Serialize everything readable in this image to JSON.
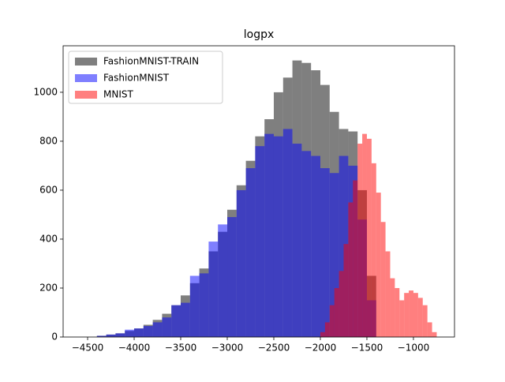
{
  "chart_data": {
    "type": "histogram",
    "title": "logpx",
    "alpha": 0.5,
    "legend": "upper left",
    "xlim": [
      -4763,
      -559
    ],
    "ylim": [
      0,
      1190
    ],
    "xticks": [
      {
        "value": -4500,
        "label": "−4500"
      },
      {
        "value": -4000,
        "label": "−4000"
      },
      {
        "value": -3500,
        "label": "−3500"
      },
      {
        "value": -3000,
        "label": "−3000"
      },
      {
        "value": -2500,
        "label": "−2500"
      },
      {
        "value": -2000,
        "label": "−2000"
      },
      {
        "value": -1500,
        "label": "−1500"
      },
      {
        "value": -1000,
        "label": "−1000"
      }
    ],
    "yticks": [
      0,
      200,
      400,
      600,
      800,
      1000
    ],
    "series": [
      {
        "name": "FashionMNIST-TRAIN",
        "color": "#000000",
        "bins": [
          -4400,
          -4300,
          -4200,
          -4100,
          -4000,
          -3900,
          -3800,
          -3700,
          -3600,
          -3500,
          -3400,
          -3300,
          -3200,
          -3100,
          -3000,
          -2900,
          -2800,
          -2700,
          -2600,
          -2500,
          -2400,
          -2300,
          -2200,
          -2100,
          -2000,
          -1900,
          -1800,
          -1700,
          -1600,
          -1500,
          -1400
        ],
        "values": [
          5,
          10,
          15,
          25,
          35,
          50,
          70,
          95,
          130,
          170,
          220,
          280,
          350,
          430,
          520,
          620,
          720,
          820,
          890,
          1000,
          1060,
          1130,
          1120,
          1090,
          1030,
          920,
          850,
          840,
          600,
          250
        ]
      },
      {
        "name": "FashionMNIST",
        "color": "#0000ff",
        "bins": [
          -4400,
          -4300,
          -4200,
          -4100,
          -4000,
          -3900,
          -3800,
          -3700,
          -3600,
          -3500,
          -3400,
          -3300,
          -3200,
          -3100,
          -3000,
          -2900,
          -2800,
          -2700,
          -2600,
          -2500,
          -2400,
          -2300,
          -2200,
          -2100,
          -2000,
          -1900,
          -1800,
          -1700,
          -1600,
          -1500,
          -1400
        ],
        "values": [
          5,
          10,
          15,
          30,
          35,
          45,
          60,
          80,
          130,
          140,
          250,
          260,
          390,
          460,
          490,
          600,
          690,
          780,
          830,
          820,
          850,
          790,
          760,
          740,
          690,
          670,
          740,
          700,
          480,
          150
        ]
      },
      {
        "name": "MNIST",
        "color": "#ff0000",
        "bins": [
          -2000,
          -1950,
          -1900,
          -1850,
          -1800,
          -1750,
          -1700,
          -1650,
          -1600,
          -1550,
          -1500,
          -1450,
          -1400,
          -1350,
          -1300,
          -1250,
          -1200,
          -1150,
          -1100,
          -1050,
          -1000,
          -950,
          -900,
          -850,
          -800,
          -750
        ],
        "values": [
          20,
          60,
          130,
          200,
          270,
          380,
          550,
          640,
          790,
          830,
          810,
          710,
          590,
          470,
          350,
          240,
          200,
          150,
          180,
          190,
          180,
          160,
          130,
          60,
          20
        ]
      }
    ]
  }
}
